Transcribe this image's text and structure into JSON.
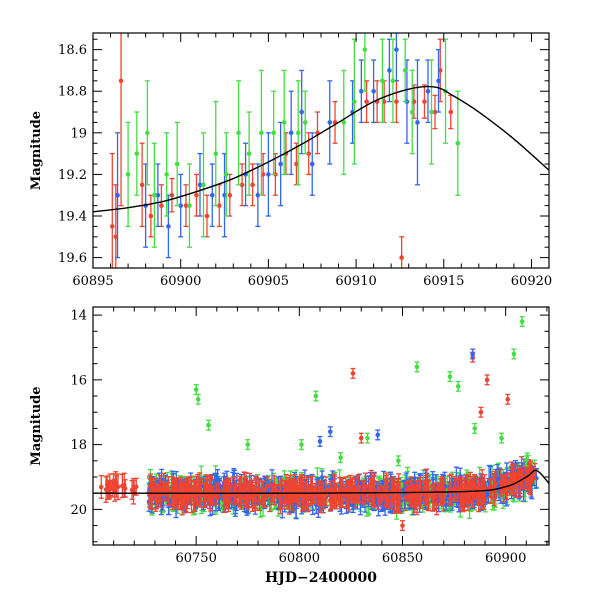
{
  "chart_data": [
    {
      "type": "scatter",
      "panel": "top",
      "xlabel": "",
      "ylabel": "Magnitude",
      "xlim": [
        60895,
        60921
      ],
      "ylim": [
        19.65,
        18.52
      ],
      "y_inverted": true,
      "xticks": [
        60895,
        60900,
        60905,
        60910,
        60915,
        60920
      ],
      "xtick_labels": [
        "60895",
        "60900",
        "60905",
        "60910",
        "60915",
        "60920"
      ],
      "yticks": [
        18.6,
        18.8,
        19.0,
        19.2,
        19.4,
        19.6
      ],
      "ytick_labels": [
        "18.6",
        "18.8",
        "19",
        "19.2",
        "19.4",
        "19.6"
      ],
      "grid": false,
      "series": [
        {
          "color": "#ee4433",
          "points": [
            [
              60896.1,
              19.45,
              0.35
            ],
            [
              60896.3,
              19.5,
              0.25
            ],
            [
              60896.6,
              18.75,
              0.6
            ],
            [
              60897.8,
              19.25,
              0.2
            ],
            [
              60898.3,
              19.4,
              0.1
            ],
            [
              60898.9,
              19.35,
              0.1
            ],
            [
              60899.5,
              19.3,
              0.08
            ],
            [
              60900.3,
              19.35,
              0.1
            ],
            [
              60900.9,
              19.3,
              0.1
            ],
            [
              60901.5,
              19.4,
              0.1
            ],
            [
              60902.2,
              19.35,
              0.1
            ],
            [
              60902.8,
              19.3,
              0.1
            ],
            [
              60903.5,
              19.25,
              0.1
            ],
            [
              60904.1,
              19.25,
              0.1
            ],
            [
              60904.7,
              19.2,
              0.1
            ],
            [
              60905.4,
              19.2,
              0.1
            ],
            [
              60906.0,
              19.1,
              0.1
            ],
            [
              60906.6,
              19.15,
              0.1
            ],
            [
              60907.3,
              19.1,
              0.1
            ],
            [
              60907.8,
              19.0,
              0.1
            ],
            [
              60908.8,
              18.95,
              0.1
            ],
            [
              60910.6,
              18.85,
              0.1
            ],
            [
              60911.2,
              18.85,
              0.1
            ],
            [
              60911.6,
              18.85,
              0.1
            ],
            [
              60912.3,
              18.85,
              0.1
            ],
            [
              60912.6,
              19.6,
              0.1
            ],
            [
              60913.3,
              18.85,
              0.08
            ],
            [
              60913.9,
              18.85,
              0.08
            ],
            [
              60914.5,
              18.9,
              0.08
            ],
            [
              60914.8,
              18.7,
              0.15
            ],
            [
              60915.4,
              18.9,
              0.08
            ]
          ]
        },
        {
          "color": "#3366ee",
          "points": [
            [
              60896.4,
              19.3,
              0.3
            ],
            [
              60898.0,
              19.35,
              0.2
            ],
            [
              60898.7,
              19.3,
              0.15
            ],
            [
              60899.3,
              19.45,
              0.15
            ],
            [
              60900.0,
              19.35,
              0.15
            ],
            [
              60901.1,
              19.25,
              0.15
            ],
            [
              60901.8,
              19.3,
              0.15
            ],
            [
              60902.5,
              19.3,
              0.2
            ],
            [
              60903.7,
              19.2,
              0.15
            ],
            [
              60904.4,
              19.3,
              0.15
            ],
            [
              60905.0,
              19.2,
              0.2
            ],
            [
              60905.7,
              19.15,
              0.2
            ],
            [
              60906.3,
              19.0,
              0.2
            ],
            [
              60906.9,
              18.9,
              0.2
            ],
            [
              60907.5,
              19.15,
              0.15
            ],
            [
              60908.5,
              18.95,
              0.2
            ],
            [
              60909.8,
              18.9,
              0.15
            ],
            [
              60910.3,
              18.8,
              0.15
            ],
            [
              60911.0,
              18.8,
              0.15
            ],
            [
              60911.9,
              18.7,
              0.15
            ],
            [
              60912.3,
              18.6,
              0.15
            ],
            [
              60912.9,
              18.85,
              0.2
            ],
            [
              60913.5,
              18.95,
              0.3
            ],
            [
              60914.1,
              18.8,
              0.15
            ],
            [
              60914.7,
              18.75,
              0.15
            ]
          ]
        },
        {
          "color": "#44dd44",
          "points": [
            [
              60897.0,
              19.2,
              0.25
            ],
            [
              60897.5,
              19.1,
              0.2
            ],
            [
              60898.1,
              19.0,
              0.25
            ],
            [
              60898.5,
              19.3,
              0.25
            ],
            [
              60899.2,
              19.2,
              0.2
            ],
            [
              60899.8,
              19.15,
              0.2
            ],
            [
              60900.5,
              19.35,
              0.2
            ],
            [
              60901.3,
              19.25,
              0.25
            ],
            [
              60902.0,
              19.1,
              0.25
            ],
            [
              60902.6,
              19.2,
              0.2
            ],
            [
              60903.3,
              19.0,
              0.25
            ],
            [
              60903.9,
              19.1,
              0.2
            ],
            [
              60904.6,
              19.0,
              0.3
            ],
            [
              60905.3,
              19.0,
              0.2
            ],
            [
              60905.9,
              18.95,
              0.25
            ],
            [
              60906.7,
              19.0,
              0.25
            ],
            [
              60907.1,
              18.95,
              0.15
            ],
            [
              60909.3,
              18.95,
              0.25
            ],
            [
              60909.9,
              18.85,
              0.3
            ],
            [
              60910.5,
              18.6,
              0.2
            ],
            [
              60911.5,
              18.75,
              0.2
            ],
            [
              60912.1,
              18.75,
              0.2
            ],
            [
              60912.8,
              18.7,
              0.15
            ],
            [
              60913.2,
              18.9,
              0.2
            ],
            [
              60914.3,
              18.9,
              0.25
            ],
            [
              60915.1,
              18.8,
              0.25
            ],
            [
              60915.8,
              19.05,
              0.25
            ]
          ]
        }
      ],
      "model_curve": {
        "color": "#000000",
        "points": [
          [
            60895,
            19.38
          ],
          [
            60897,
            19.36
          ],
          [
            60899,
            19.33
          ],
          [
            60901,
            19.28
          ],
          [
            60903,
            19.22
          ],
          [
            60905,
            19.14
          ],
          [
            60907,
            19.05
          ],
          [
            60909,
            18.95
          ],
          [
            60911,
            18.85
          ],
          [
            60913,
            18.79
          ],
          [
            60914.5,
            18.78
          ],
          [
            60915.5,
            18.82
          ],
          [
            60917,
            18.9
          ],
          [
            60919,
            19.03
          ],
          [
            60921,
            19.18
          ]
        ]
      }
    },
    {
      "type": "scatter",
      "panel": "bottom",
      "xlabel": "HJD−2400000",
      "ylabel": "Magnitude",
      "xlim": [
        60700,
        60921
      ],
      "ylim": [
        21.1,
        13.75
      ],
      "y_inverted": true,
      "xticks": [
        60750,
        60800,
        60850,
        60900
      ],
      "xtick_labels": [
        "60750",
        "60800",
        "60850",
        "60900"
      ],
      "yticks": [
        14,
        16,
        18,
        20
      ],
      "ytick_labels": [
        "14",
        "16",
        "18",
        "20"
      ],
      "grid": false,
      "series": [
        {
          "color": "#44dd44",
          "points": [
            [
              60750,
              16.3
            ],
            [
              60751,
              16.6
            ],
            [
              60756,
              17.4
            ],
            [
              60775,
              18.0
            ],
            [
              60801,
              18.0
            ],
            [
              60808,
              16.5
            ],
            [
              60820,
              18.4
            ],
            [
              60833,
              17.8
            ],
            [
              60848,
              18.5
            ],
            [
              60857,
              15.6
            ],
            [
              60873,
              15.9
            ],
            [
              60877,
              16.2
            ],
            [
              60885,
              17.5
            ],
            [
              60898,
              17.8
            ],
            [
              60904,
              15.2
            ],
            [
              60908,
              14.2
            ],
            [
              60910,
              18.5
            ]
          ]
        },
        {
          "color": "#ee4433",
          "points": [
            [
              60826,
              15.8
            ],
            [
              60830,
              17.8
            ],
            [
              60884,
              15.3
            ],
            [
              60891,
              16.0
            ],
            [
              60901,
              16.6
            ],
            [
              60888,
              17.0
            ],
            [
              60850,
              20.5
            ]
          ]
        },
        {
          "color": "#3366ee",
          "points": [
            [
              60884,
              15.2
            ],
            [
              60810,
              17.9
            ],
            [
              60815,
              17.6
            ],
            [
              60838,
              17.7
            ]
          ]
        }
      ],
      "dense_band": {
        "x_range": [
          60727,
          60915
        ],
        "center_mag": 19.5,
        "trend_end_mag": 18.9,
        "scatter_mag": 0.3
      },
      "early_points": {
        "color": "#ee4433",
        "x_range": [
          60703,
          60722
        ],
        "center_mag": 19.3
      },
      "model_curve": {
        "color": "#000000",
        "points": [
          [
            60700,
            19.5
          ],
          [
            60800,
            19.5
          ],
          [
            60880,
            19.45
          ],
          [
            60900,
            19.3
          ],
          [
            60910,
            19.0
          ],
          [
            60915,
            18.8
          ],
          [
            60921,
            19.2
          ]
        ]
      }
    }
  ]
}
